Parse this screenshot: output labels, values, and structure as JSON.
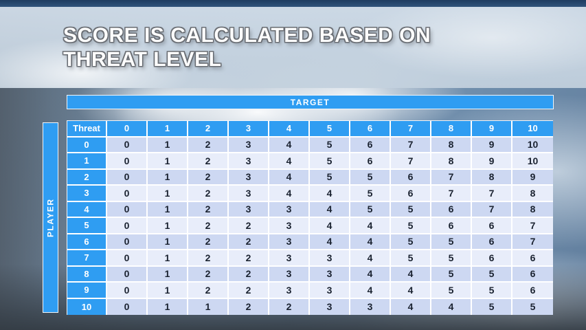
{
  "slide": {
    "title": "SCORE IS CALCULATED BASED ON THREAT LEVEL",
    "title_line1": "SCORE IS CALCULATED BASED ON",
    "title_line2": "THREAT LEVEL"
  },
  "matrix": {
    "target_label": "TARGET",
    "player_label": "PLAYER",
    "corner_label": "Threat",
    "column_headers": [
      "0",
      "1",
      "2",
      "3",
      "4",
      "5",
      "6",
      "7",
      "8",
      "9",
      "10"
    ],
    "rows": [
      {
        "threat": "0",
        "values": [
          "0",
          "1",
          "2",
          "3",
          "4",
          "5",
          "6",
          "7",
          "8",
          "9",
          "10"
        ]
      },
      {
        "threat": "1",
        "values": [
          "0",
          "1",
          "2",
          "3",
          "4",
          "5",
          "6",
          "7",
          "8",
          "9",
          "10"
        ]
      },
      {
        "threat": "2",
        "values": [
          "0",
          "1",
          "2",
          "3",
          "4",
          "5",
          "5",
          "6",
          "7",
          "8",
          "9"
        ]
      },
      {
        "threat": "3",
        "values": [
          "0",
          "1",
          "2",
          "3",
          "4",
          "4",
          "5",
          "6",
          "7",
          "7",
          "8"
        ]
      },
      {
        "threat": "4",
        "values": [
          "0",
          "1",
          "2",
          "3",
          "3",
          "4",
          "5",
          "5",
          "6",
          "7",
          "8"
        ]
      },
      {
        "threat": "5",
        "values": [
          "0",
          "1",
          "2",
          "2",
          "3",
          "4",
          "4",
          "5",
          "6",
          "6",
          "7"
        ]
      },
      {
        "threat": "6",
        "values": [
          "0",
          "1",
          "2",
          "2",
          "3",
          "4",
          "4",
          "5",
          "5",
          "6",
          "7"
        ]
      },
      {
        "threat": "7",
        "values": [
          "0",
          "1",
          "2",
          "2",
          "3",
          "3",
          "4",
          "5",
          "5",
          "6",
          "6"
        ]
      },
      {
        "threat": "8",
        "values": [
          "0",
          "1",
          "2",
          "2",
          "3",
          "3",
          "4",
          "4",
          "5",
          "5",
          "6"
        ]
      },
      {
        "threat": "9",
        "values": [
          "0",
          "1",
          "2",
          "2",
          "3",
          "3",
          "4",
          "4",
          "5",
          "5",
          "6"
        ]
      },
      {
        "threat": "10",
        "values": [
          "0",
          "1",
          "1",
          "2",
          "2",
          "3",
          "3",
          "4",
          "4",
          "5",
          "5"
        ]
      }
    ]
  },
  "colors": {
    "header_blue": "#2F9DF2",
    "band_dark": "#CDD8F2",
    "band_light": "#E8EDFA",
    "cell_text": "#1A2230",
    "header_text": "#FFFFFF"
  }
}
